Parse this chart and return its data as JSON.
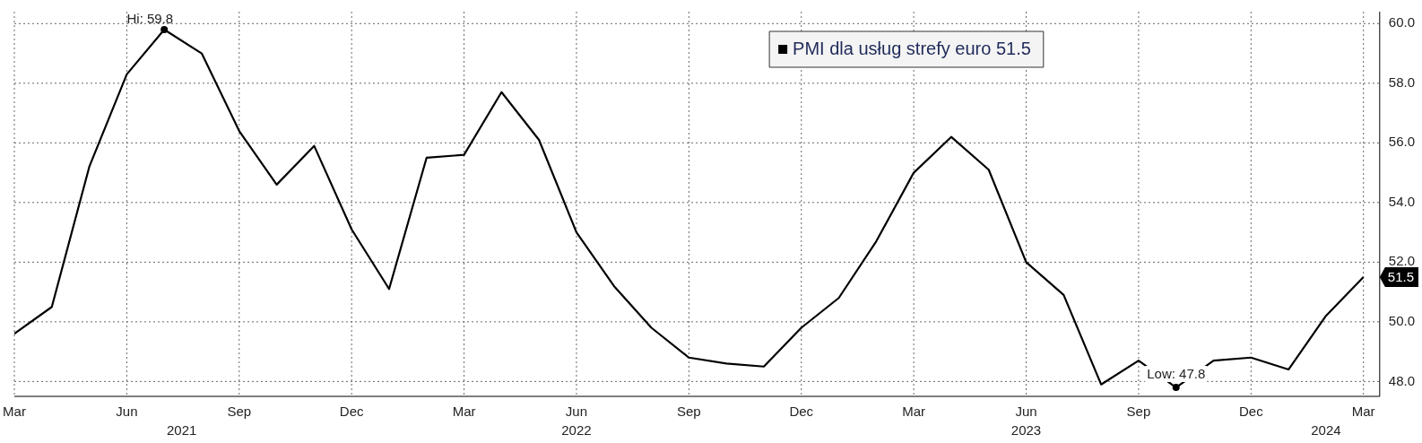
{
  "chart_data": {
    "type": "line",
    "x": [
      "2021-03",
      "2021-04",
      "2021-05",
      "2021-06",
      "2021-07",
      "2021-08",
      "2021-09",
      "2021-10",
      "2021-11",
      "2021-12",
      "2022-01",
      "2022-02",
      "2022-03",
      "2022-04",
      "2022-05",
      "2022-06",
      "2022-07",
      "2022-08",
      "2022-09",
      "2022-10",
      "2022-11",
      "2022-12",
      "2023-01",
      "2023-02",
      "2023-03",
      "2023-04",
      "2023-05",
      "2023-06",
      "2023-07",
      "2023-08",
      "2023-09",
      "2023-10",
      "2023-11",
      "2023-12",
      "2024-01",
      "2024-02",
      "2024-03"
    ],
    "series": [
      {
        "name": "PMI dla usług strefy euro 51.5",
        "color": "#000000",
        "values": [
          49.6,
          50.5,
          55.2,
          58.3,
          59.8,
          59.0,
          56.4,
          54.6,
          55.9,
          53.1,
          51.1,
          55.5,
          55.6,
          57.7,
          56.1,
          53.0,
          51.2,
          49.8,
          48.8,
          48.6,
          48.5,
          49.8,
          50.8,
          52.7,
          55.0,
          56.2,
          55.1,
          52.0,
          50.9,
          47.9,
          48.7,
          47.8,
          48.7,
          48.8,
          48.4,
          50.2,
          51.5
        ],
        "value_labels": [
          null,
          null,
          null,
          null,
          null,
          null,
          null,
          null,
          null,
          null,
          null,
          null,
          null,
          null,
          null,
          null,
          null,
          null,
          null,
          null,
          null,
          null,
          null,
          null,
          null,
          null,
          null,
          null,
          null,
          null,
          null,
          null,
          null,
          null,
          null,
          null,
          "51.5"
        ]
      }
    ],
    "xlim": [
      "2021-03",
      "2024-03-14"
    ],
    "xticks": [
      {
        "value": "2021-03",
        "label": "Mar"
      },
      {
        "value": "2021-06",
        "label": "Jun"
      },
      {
        "value": "2021-09",
        "label": "Sep"
      },
      {
        "value": "2021-12",
        "label": "Dec"
      },
      {
        "value": "2022-03",
        "label": "Mar"
      },
      {
        "value": "2022-06",
        "label": "Jun"
      },
      {
        "value": "2022-09",
        "label": "Sep"
      },
      {
        "value": "2022-12",
        "label": "Dec"
      },
      {
        "value": "2023-03",
        "label": "Mar"
      },
      {
        "value": "2023-06",
        "label": "Jun"
      },
      {
        "value": "2023-09",
        "label": "Sep"
      },
      {
        "value": "2023-12",
        "label": "Dec"
      },
      {
        "value": "2024-03",
        "label": "Mar"
      }
    ],
    "x2lim": [
      "2021-03",
      "2024-03-14"
    ],
    "x2ticks": [
      {
        "value": "2021-07-15",
        "label": "2021"
      },
      {
        "value": "2022-06",
        "label": "2022"
      },
      {
        "value": "2023-06",
        "label": "2023"
      },
      {
        "value": "2024-02",
        "label": "2024"
      }
    ],
    "ylim": [
      47.5,
      60.4
    ],
    "yticks": [
      {
        "value": 48,
        "label": "48.0"
      },
      {
        "value": 50,
        "label": "50.0"
      },
      {
        "value": 52,
        "label": "52.0"
      },
      {
        "value": 54,
        "label": "54.0"
      },
      {
        "value": 56,
        "label": "56.0"
      },
      {
        "value": 58,
        "label": "58.0"
      },
      {
        "value": 60,
        "label": "60.0"
      }
    ],
    "annotations": [
      {
        "text": "Hi: 59.8",
        "x": "2021-07",
        "y": 59.8
      },
      {
        "text": "Low: 47.8",
        "x": "2023-10",
        "y": 47.8
      }
    ],
    "grid": true,
    "legend": "top",
    "marker": "none",
    "line_style": "solid"
  }
}
